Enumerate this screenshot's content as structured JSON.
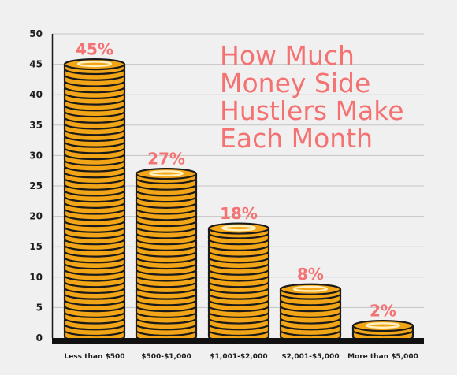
{
  "colors": {
    "background": "#f1f0f0",
    "coin": "#f2a516",
    "coin_outline": "#1a1a1a",
    "coin_highlight": "#fff1c2",
    "accent": "#f47272",
    "grid": "#c4c4c4"
  },
  "chart_data": {
    "type": "bar",
    "title_lines": [
      "How Much",
      "Money Side",
      "Hustlers Make",
      "Each Month"
    ],
    "xlabel": "",
    "ylabel": "",
    "categories": [
      "Less than $500",
      "$500-$1,000",
      "$1,001-$2,000",
      "$2,001-$5,000",
      "More than $5,000"
    ],
    "values": [
      45,
      27,
      18,
      8,
      2
    ],
    "value_labels": [
      "45%",
      "27%",
      "18%",
      "8%",
      "2%"
    ],
    "ylim": [
      0,
      50
    ],
    "yticks": [
      0,
      5,
      10,
      15,
      20,
      25,
      30,
      35,
      40,
      45,
      50
    ],
    "grid": true,
    "bar_style": "stacked coins"
  }
}
